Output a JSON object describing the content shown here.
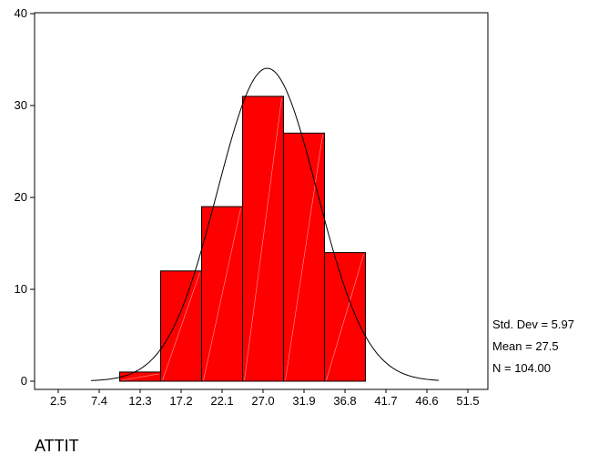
{
  "chart_data": {
    "type": "bar",
    "subtype": "histogram",
    "xlabel": "ATTIT",
    "ylabel": "",
    "ylim": [
      0,
      40
    ],
    "yticks": [
      0,
      10,
      20,
      30,
      40
    ],
    "categories": [
      "2.5",
      "7.4",
      "12.3",
      "17.2",
      "22.1",
      "27.0",
      "31.9",
      "36.8",
      "41.7",
      "46.6",
      "51.5"
    ],
    "values": [
      0,
      0,
      1,
      12,
      19,
      31,
      27,
      14,
      0,
      0,
      0
    ],
    "normal_curve": {
      "mean": 27.5,
      "std_dev": 5.97,
      "n": 104,
      "bin_width": 4.9
    },
    "stats": [
      "Std. Dev = 5.97",
      "Mean = 27.5",
      "N = 104.00"
    ],
    "grid": false,
    "colors": {
      "bar_fill": "#ff0000",
      "bar_stroke": "#000000",
      "curve": "#000000"
    }
  }
}
